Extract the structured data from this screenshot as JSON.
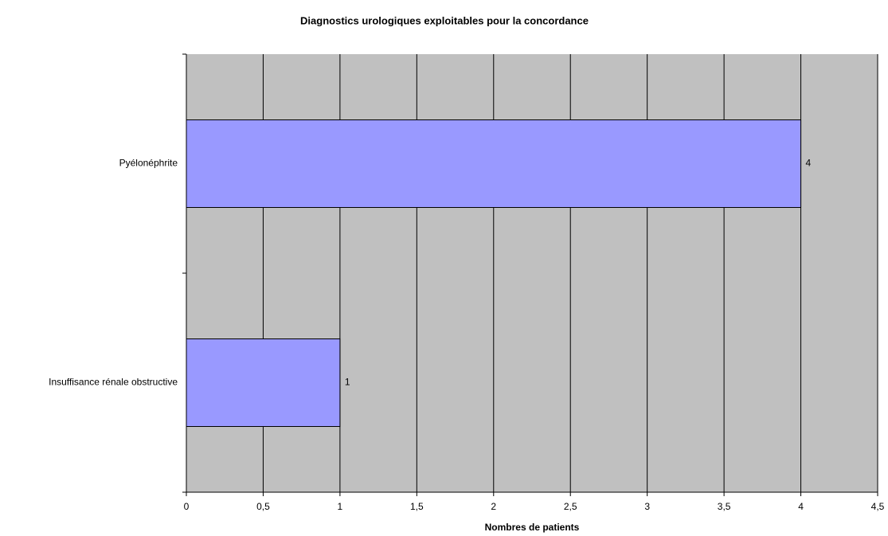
{
  "chart_data": {
    "type": "hbar",
    "title": "Diagnostics urologiques exploitables pour la concordance",
    "xlabel": "Nombres de patients",
    "categories": [
      "Insuffisance rénale obstructive",
      "Pyélonéphrite"
    ],
    "values": [
      1,
      4
    ],
    "color": "#9999ff",
    "xlim": [
      0,
      4.5
    ],
    "xticks": [
      0,
      {
        "value": 0.5,
        "label": "0,5"
      },
      1,
      {
        "value": 1.5,
        "label": "1,5"
      },
      2,
      {
        "value": 2.5,
        "label": "2,5"
      },
      3,
      {
        "value": 3.5,
        "label": "3,5"
      },
      4,
      {
        "value": 4.5,
        "label": "4,5"
      }
    ],
    "grid": true
  }
}
